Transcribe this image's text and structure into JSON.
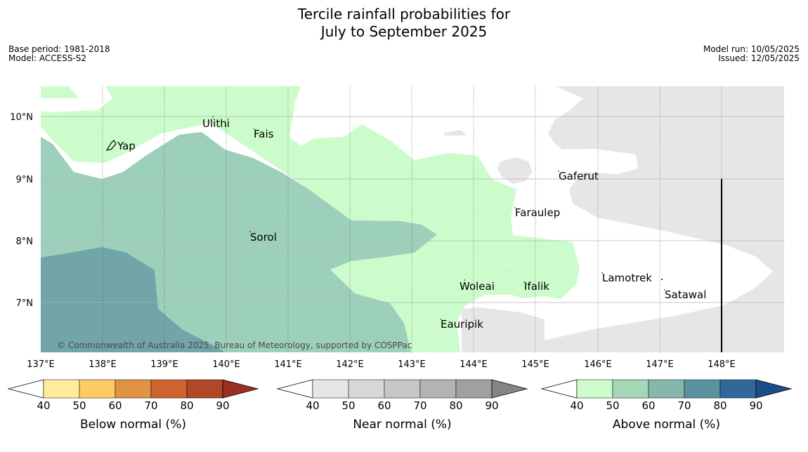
{
  "header": {
    "title_line1": "Tercile rainfall probabilities for",
    "title_line2": "July to September 2025",
    "base_period": "Base period: 1981-2018",
    "model": "Model: ACCESS-S2",
    "model_run": "Model run: 10/05/2025",
    "issued": "Issued: 12/05/2025"
  },
  "map": {
    "lon_labels": [
      "137°E",
      "138°E",
      "139°E",
      "140°E",
      "141°E",
      "142°E",
      "143°E",
      "144°E",
      "145°E",
      "146°E",
      "147°E",
      "148°E"
    ],
    "lat_labels": [
      "10°N",
      "9°N",
      "8°N",
      "7°N"
    ],
    "places": [
      {
        "name": "Ulithi"
      },
      {
        "name": "Fais"
      },
      {
        "name": "Yap"
      },
      {
        "name": "Gaferut"
      },
      {
        "name": "Faraulep"
      },
      {
        "name": "Sorol"
      },
      {
        "name": "Lamotrek"
      },
      {
        "name": "Woleai"
      },
      {
        "name": "Ifalik"
      },
      {
        "name": "Satawal"
      },
      {
        "name": "Eauripik"
      }
    ],
    "copyright": "© Commonwealth of Australia 2025, Bureau of Meteorology, supported by COSPPac"
  },
  "legends": [
    {
      "title": "Below normal (%)",
      "ticks": [
        "40",
        "50",
        "60",
        "70",
        "80",
        "90"
      ],
      "colors": [
        "#ffffff",
        "#ffeb9c",
        "#ffcb65",
        "#e19344",
        "#cd632f",
        "#b04726",
        "#9a3020"
      ]
    },
    {
      "title": "Near normal (%)",
      "ticks": [
        "40",
        "50",
        "60",
        "70",
        "80",
        "90"
      ],
      "colors": [
        "#ffffff",
        "#e6e6e6",
        "#d7d7d7",
        "#c6c6c6",
        "#b3b3b3",
        "#a0a0a0",
        "#858585"
      ]
    },
    {
      "title": "Above normal (%)",
      "ticks": [
        "40",
        "50",
        "60",
        "70",
        "80",
        "90"
      ],
      "colors": [
        "#ffffff",
        "#ccfccc",
        "#a5d7b7",
        "#86b7ab",
        "#5b929f",
        "#32679a",
        "#1b4e86"
      ]
    }
  ]
}
